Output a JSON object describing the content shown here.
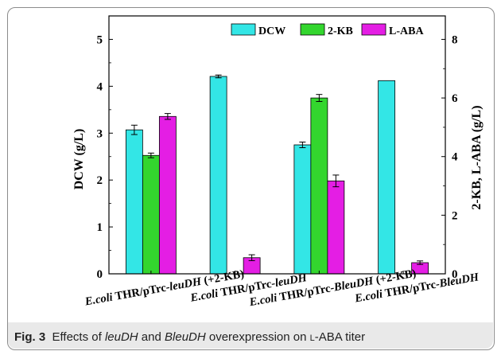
{
  "caption": {
    "label": "Fig. 3",
    "text_before": "Effects of ",
    "gene1": "leuDH",
    "text_mid": " and ",
    "gene2": "BleuDH",
    "text_after1": " overexpression on ",
    "sc_letter": "l",
    "text_after2": "-ABA titer"
  },
  "chart_data": {
    "type": "bar",
    "categories": [
      {
        "prefix": "E.coli",
        "mid": " THR/pTrc-",
        "gene": "leuDH",
        "suffix": " (+2-KB)"
      },
      {
        "prefix": "E.coli",
        "mid": " THR/pTrc-",
        "gene": "leuDH",
        "suffix": ""
      },
      {
        "prefix": "E.coli",
        "mid": " THR/pTrc-",
        "gene": "BleuDH",
        "suffix": " (+2-KB)"
      },
      {
        "prefix": "E.coli",
        "mid": " THR/pTrc-",
        "gene": "BleuDH",
        "suffix": ""
      }
    ],
    "series": [
      {
        "name": "DCW",
        "axis": "left",
        "color": "#33e6e6",
        "values": [
          3.07,
          4.21,
          2.75,
          4.12
        ],
        "errors": [
          0.1,
          0.03,
          0.06,
          0
        ]
      },
      {
        "name": "2-KB",
        "axis": "right",
        "color": "#33d62e",
        "values": [
          4.04,
          null,
          6.0,
          null
        ],
        "errors": [
          0.08,
          null,
          0.12,
          null
        ]
      },
      {
        "name": "L-ABA",
        "axis": "right",
        "color": "#e41ee4",
        "values": [
          5.37,
          0.55,
          3.17,
          0.38
        ],
        "errors": [
          0.1,
          0.1,
          0.2,
          0.06
        ]
      }
    ],
    "ylabel_left": "DCW (g/L)",
    "ylabel_right": "2-KB, L-ABA (g/L)",
    "ylim_left": [
      0,
      5.5
    ],
    "ylim_right": [
      0,
      8.8
    ],
    "yticks_left": [
      0,
      1,
      2,
      3,
      4,
      5
    ],
    "yticks_right": [
      0,
      2,
      4,
      6,
      8
    ],
    "legend": "top-right",
    "grid": false
  }
}
